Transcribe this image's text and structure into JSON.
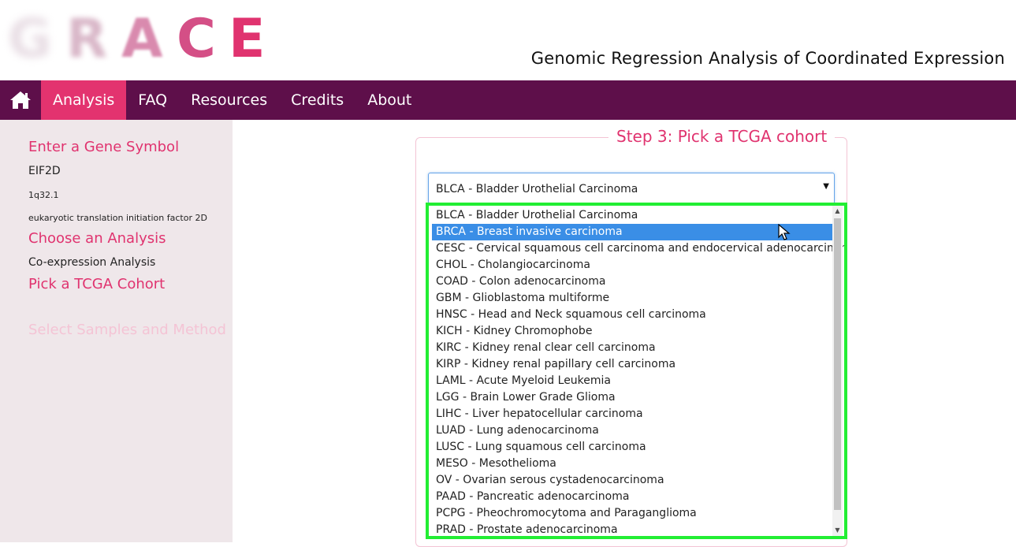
{
  "logo": {
    "letters": [
      "G",
      "R",
      "A",
      "C",
      "E"
    ]
  },
  "header": {
    "tagline": "Genomic Regression Analysis of Coordinated Expression"
  },
  "navbar": {
    "home_icon": "home-icon",
    "items": [
      {
        "label": "Analysis",
        "active": true
      },
      {
        "label": "FAQ",
        "active": false
      },
      {
        "label": "Resources",
        "active": false
      },
      {
        "label": "Credits",
        "active": false
      },
      {
        "label": "About",
        "active": false
      }
    ]
  },
  "sidebar": {
    "gene_heading": "Enter a Gene Symbol",
    "gene_symbol": "EIF2D",
    "gene_locus": "1q32.1",
    "gene_description": "eukaryotic translation initiation factor 2D",
    "analysis_heading": "Choose an Analysis",
    "analysis_value": "Co-expression Analysis",
    "cohort_heading": "Pick a TCGA Cohort",
    "samples_heading": "Select Samples and Method"
  },
  "step": {
    "legend": "Step 3: Pick a TCGA cohort",
    "selected_value": "BLCA - Bladder Urothelial Carcinoma",
    "options": [
      "BLCA - Bladder Urothelial Carcinoma",
      "BRCA - Breast invasive carcinoma",
      "CESC - Cervical squamous cell carcinoma and endocervical adenocarcinoma",
      "CHOL - Cholangiocarcinoma",
      "COAD - Colon adenocarcinoma",
      "GBM - Glioblastoma multiforme",
      "HNSC - Head and Neck squamous cell carcinoma",
      "KICH - Kidney Chromophobe",
      "KIRC - Kidney renal clear cell carcinoma",
      "KIRP - Kidney renal papillary cell carcinoma",
      "LAML - Acute Myeloid Leukemia",
      "LGG - Brain Lower Grade Glioma",
      "LIHC - Liver hepatocellular carcinoma",
      "LUAD - Lung adenocarcinoma",
      "LUSC - Lung squamous cell carcinoma",
      "MESO - Mesothelioma",
      "OV - Ovarian serous cystadenocarcinoma",
      "PAAD - Pancreatic adenocarcinoma",
      "PCPG - Pheochromocytoma and Paraganglioma",
      "PRAD - Prostate adenocarcinoma"
    ],
    "highlighted_index": 1
  },
  "colors": {
    "brand_pink": "#e0336f",
    "nav_bg": "#5e0f4a",
    "sidebar_bg": "#efe7ea",
    "highlight_outline": "#22ee33",
    "option_highlight": "#3a8ee6"
  }
}
